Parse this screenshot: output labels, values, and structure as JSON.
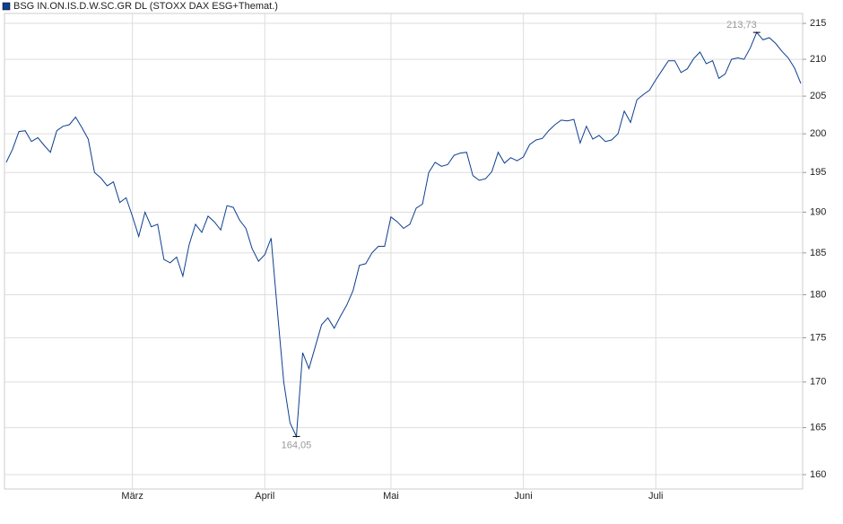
{
  "chart_data": {
    "type": "line",
    "categories": [
      null,
      null,
      null,
      null,
      null,
      null,
      null,
      null,
      null,
      null,
      null,
      null,
      null,
      null,
      null,
      null,
      null,
      null,
      null,
      null,
      "März",
      null,
      null,
      null,
      null,
      null,
      null,
      null,
      null,
      null,
      null,
      null,
      null,
      null,
      null,
      null,
      null,
      null,
      null,
      null,
      null,
      "April",
      null,
      null,
      null,
      null,
      null,
      null,
      null,
      null,
      null,
      null,
      null,
      null,
      null,
      null,
      null,
      null,
      null,
      null,
      null,
      "Mai",
      null,
      null,
      null,
      null,
      null,
      null,
      null,
      null,
      null,
      null,
      null,
      null,
      null,
      null,
      null,
      null,
      null,
      null,
      null,
      null,
      "Juni",
      null,
      null,
      null,
      null,
      null,
      null,
      null,
      null,
      null,
      null,
      null,
      null,
      null,
      null,
      null,
      null,
      null,
      null,
      null,
      null,
      "Juli",
      null,
      null,
      null,
      null,
      null,
      null,
      null,
      null,
      null,
      null,
      null,
      null,
      null,
      null,
      null,
      null,
      null,
      null,
      null,
      null,
      null,
      null,
      null
    ],
    "series": [
      {
        "name": "BSG IN.ON.IS.D.W.SC.GR DL (STOXX DAX ESG+Themat.)",
        "color": "#0d3f8f",
        "values": [
          196.3,
          198,
          200.3,
          200.4,
          199,
          199.5,
          198.5,
          197.6,
          200.4,
          201,
          201.2,
          202.2,
          200.8,
          199.3,
          195,
          194.3,
          193.3,
          193.8,
          191.2,
          191.8,
          189.5,
          187,
          190,
          188.2,
          188.5,
          184.2,
          183.8,
          184.5,
          182.2,
          186,
          188.5,
          187.5,
          189.5,
          188.8,
          187.8,
          190.8,
          190.6,
          189,
          188,
          185.5,
          184,
          184.8,
          186.8,
          178,
          170,
          165.5,
          164.05,
          173.3,
          171.5,
          174,
          176.5,
          177.3,
          176.1,
          177.5,
          178.8,
          180.5,
          183.5,
          183.7,
          185,
          185.8,
          185.8,
          189.4,
          188.8,
          188,
          188.5,
          190.5,
          191,
          195,
          196.3,
          195.8,
          196,
          197.2,
          197.5,
          197.6,
          194.6,
          194,
          194.2,
          195.1,
          197.6,
          196.2,
          196.9,
          196.5,
          197,
          198.6,
          199.2,
          199.4,
          200.4,
          201.2,
          201.8,
          201.7,
          201.9,
          198.8,
          201,
          199.3,
          199.8,
          199,
          199.2,
          200,
          203,
          201.5,
          204.5,
          205.2,
          205.8,
          207.2,
          208.5,
          209.8,
          209.8,
          208.2,
          208.7,
          210.1,
          211,
          209.4,
          209.8,
          207.4,
          208,
          210,
          210.2,
          210,
          211.6,
          213.73,
          212.7,
          213,
          212.2,
          211.1,
          210.2,
          208.8,
          206.7
        ]
      }
    ],
    "annotations": [
      {
        "text": "213,73",
        "value": 213.73
      },
      {
        "text": "164,05",
        "value": 164.05
      }
    ],
    "ylim": [
      158.5,
      216.4
    ],
    "yticks": [
      160,
      165,
      170,
      175,
      180,
      185,
      190,
      195,
      200,
      205,
      210,
      215
    ],
    "log_scale": true,
    "grid": true
  }
}
